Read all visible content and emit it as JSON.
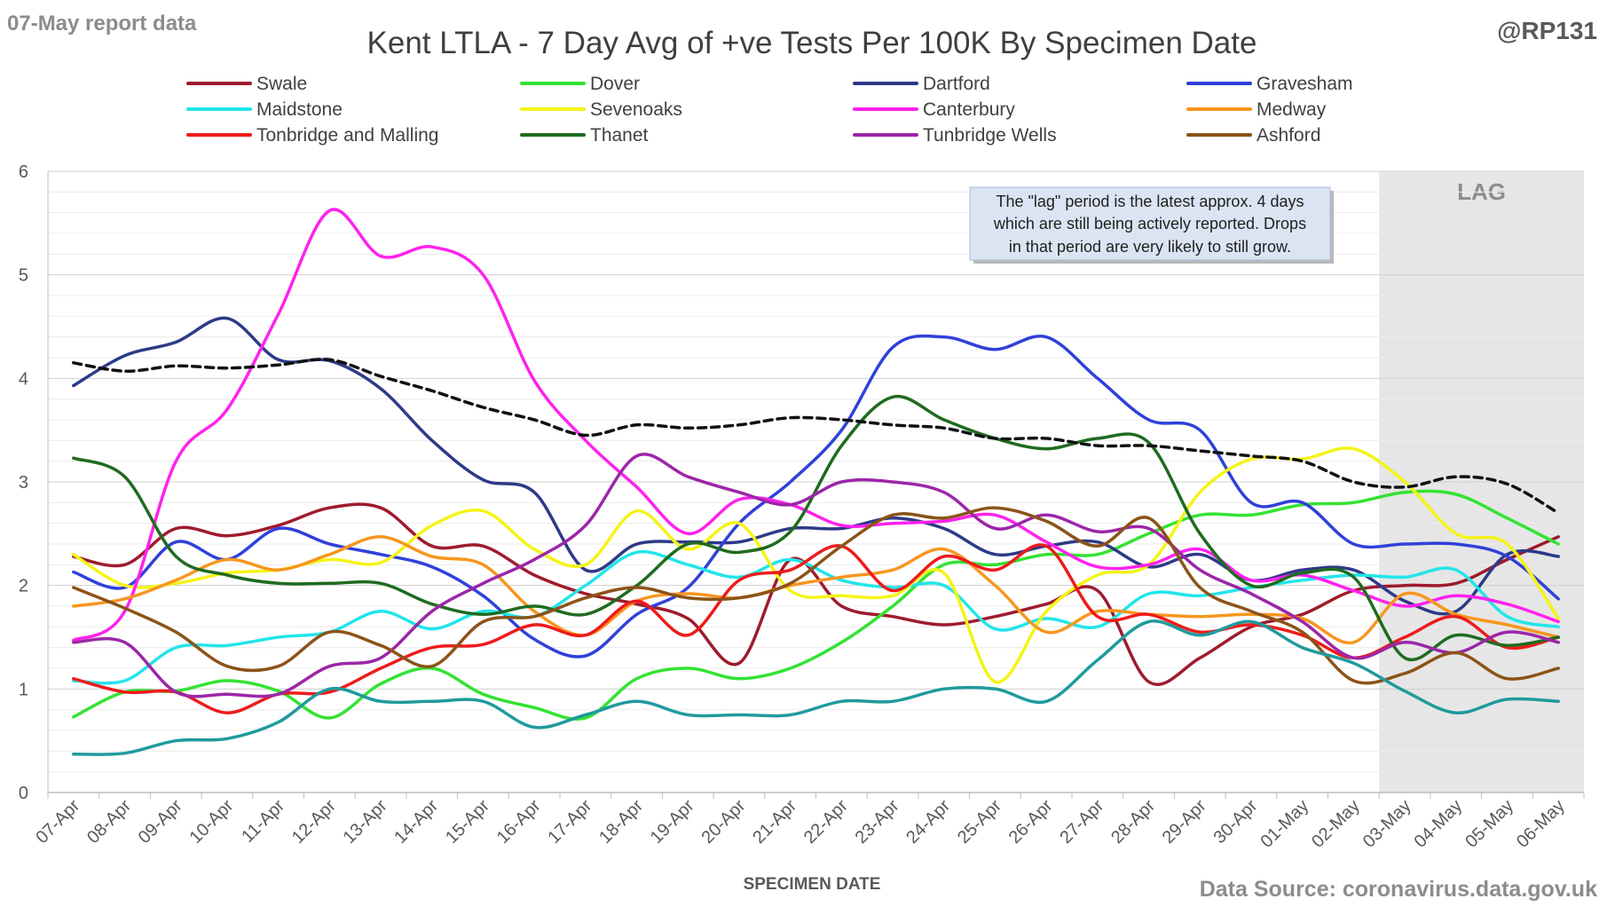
{
  "page": {
    "report_label": "07-May report data",
    "handle": "@RP131",
    "source": "Data Source: coronavirus.data.gov.uk"
  },
  "chart_data": {
    "type": "line",
    "title": "Kent  LTLA - 7 Day Avg of +ve Tests Per 100K By Specimen Date",
    "xlabel": "SPECIMEN DATE",
    "ylabel": "",
    "ylim": [
      0,
      6
    ],
    "yticks": [
      0,
      1,
      2,
      3,
      4,
      5,
      6
    ],
    "grid": true,
    "legend_position": "top",
    "lag": {
      "label": "LAG",
      "from": "03-May",
      "to": "06-May",
      "note": [
        "The \"lag\" period is the latest approx. 4 days",
        "which are still being actively reported.  Drops",
        "in that period are very likely to still grow."
      ]
    },
    "x": [
      "07-Apr",
      "08-Apr",
      "09-Apr",
      "10-Apr",
      "11-Apr",
      "12-Apr",
      "13-Apr",
      "14-Apr",
      "15-Apr",
      "16-Apr",
      "17-Apr",
      "18-Apr",
      "19-Apr",
      "20-Apr",
      "21-Apr",
      "22-Apr",
      "23-Apr",
      "24-Apr",
      "25-Apr",
      "26-Apr",
      "27-Apr",
      "28-Apr",
      "29-Apr",
      "30-Apr",
      "01-May",
      "02-May",
      "03-May",
      "04-May",
      "05-May",
      "06-May"
    ],
    "series": [
      {
        "name": "Swale",
        "color": "#9e1b2e",
        "values": [
          2.28,
          2.2,
          2.55,
          2.48,
          2.58,
          2.75,
          2.75,
          2.38,
          2.38,
          2.1,
          1.92,
          1.82,
          1.68,
          1.25,
          2.25,
          1.8,
          1.7,
          1.62,
          1.7,
          1.82,
          1.95,
          1.07,
          1.3,
          1.6,
          1.72,
          1.95,
          2.0,
          2.02,
          2.25,
          2.47
        ]
      },
      {
        "name": "Dover",
        "color": "#33e333",
        "values": [
          0.73,
          0.97,
          0.98,
          1.08,
          0.98,
          0.72,
          1.05,
          1.2,
          0.95,
          0.82,
          0.72,
          1.1,
          1.2,
          1.1,
          1.2,
          1.45,
          1.8,
          2.2,
          2.2,
          2.3,
          2.3,
          2.5,
          2.68,
          2.68,
          2.78,
          2.8,
          2.9,
          2.88,
          2.65,
          2.4
        ]
      },
      {
        "name": "Dartford",
        "color": "#2e3a87",
        "values": [
          3.93,
          4.22,
          4.35,
          4.58,
          4.18,
          4.17,
          3.9,
          3.4,
          3.02,
          2.9,
          2.15,
          2.4,
          2.42,
          2.42,
          2.55,
          2.55,
          2.65,
          2.55,
          2.3,
          2.38,
          2.42,
          2.18,
          2.3,
          2.05,
          2.15,
          2.15,
          1.85,
          1.75,
          2.3,
          2.28
        ]
      },
      {
        "name": "Gravesham",
        "color": "#2f41d9",
        "values": [
          2.13,
          1.98,
          2.42,
          2.25,
          2.55,
          2.4,
          2.3,
          2.18,
          1.9,
          1.48,
          1.32,
          1.72,
          1.98,
          2.6,
          3.0,
          3.5,
          4.3,
          4.4,
          4.28,
          4.4,
          4.0,
          3.6,
          3.5,
          2.8,
          2.8,
          2.4,
          2.4,
          2.4,
          2.28,
          1.87
        ]
      },
      {
        "name": "Maidstone",
        "color": "#22e5ea",
        "values": [
          1.08,
          1.08,
          1.4,
          1.42,
          1.5,
          1.55,
          1.75,
          1.58,
          1.75,
          1.7,
          2.0,
          2.32,
          2.2,
          2.08,
          2.25,
          2.05,
          1.98,
          2.0,
          1.58,
          1.68,
          1.6,
          1.92,
          1.9,
          1.98,
          2.05,
          2.1,
          2.08,
          2.15,
          1.7,
          1.6
        ]
      },
      {
        "name": "Sevenoaks",
        "color": "#f4f417",
        "values": [
          2.3,
          2.0,
          2.02,
          2.12,
          2.15,
          2.25,
          2.22,
          2.58,
          2.72,
          2.35,
          2.2,
          2.72,
          2.35,
          2.6,
          1.95,
          1.9,
          1.9,
          2.12,
          1.07,
          1.75,
          2.1,
          2.2,
          2.9,
          3.22,
          3.22,
          3.32,
          3.0,
          2.5,
          2.4,
          1.68
        ]
      },
      {
        "name": "Canterbury",
        "color": "#ff21ee",
        "values": [
          1.47,
          1.75,
          3.2,
          3.7,
          4.62,
          5.62,
          5.18,
          5.27,
          5.0,
          3.98,
          3.4,
          2.95,
          2.5,
          2.83,
          2.78,
          2.58,
          2.6,
          2.62,
          2.68,
          2.42,
          2.18,
          2.2,
          2.35,
          2.05,
          2.1,
          1.95,
          1.8,
          1.9,
          1.82,
          1.65
        ]
      },
      {
        "name": "Medway",
        "color": "#f7961e",
        "values": [
          1.8,
          1.87,
          2.05,
          2.25,
          2.15,
          2.3,
          2.47,
          2.28,
          2.2,
          1.75,
          1.52,
          1.85,
          1.92,
          1.88,
          2.0,
          2.08,
          2.15,
          2.35,
          2.0,
          1.55,
          1.75,
          1.72,
          1.7,
          1.72,
          1.68,
          1.45,
          1.92,
          1.72,
          1.62,
          1.5
        ]
      },
      {
        "name": "Tonbridge and Malling",
        "color": "#ee1b1b",
        "values": [
          1.1,
          0.97,
          0.97,
          0.77,
          0.95,
          0.97,
          1.2,
          1.4,
          1.43,
          1.62,
          1.52,
          1.85,
          1.52,
          2.05,
          2.15,
          2.38,
          1.95,
          2.28,
          2.15,
          2.38,
          1.7,
          1.72,
          1.55,
          1.62,
          1.52,
          1.3,
          1.5,
          1.7,
          1.4,
          1.5
        ]
      },
      {
        "name": "Thanet",
        "color": "#1f6b1f",
        "values": [
          3.23,
          3.05,
          2.28,
          2.1,
          2.02,
          2.02,
          2.02,
          1.82,
          1.72,
          1.8,
          1.72,
          2.0,
          2.4,
          2.32,
          2.52,
          3.35,
          3.82,
          3.6,
          3.42,
          3.32,
          3.42,
          3.38,
          2.5,
          2.0,
          2.12,
          2.08,
          1.3,
          1.52,
          1.42,
          1.5
        ]
      },
      {
        "name": "Tunbridge Wells",
        "color": "#9c26a8",
        "values": [
          1.45,
          1.45,
          0.97,
          0.95,
          0.95,
          1.22,
          1.3,
          1.75,
          2.02,
          2.25,
          2.58,
          3.25,
          3.05,
          2.9,
          2.78,
          3.0,
          3.0,
          2.9,
          2.55,
          2.68,
          2.52,
          2.55,
          2.15,
          1.92,
          1.65,
          1.3,
          1.45,
          1.35,
          1.55,
          1.45
        ]
      },
      {
        "name": "Ashford",
        "color": "#8c5318",
        "values": [
          1.98,
          1.78,
          1.55,
          1.22,
          1.22,
          1.55,
          1.42,
          1.22,
          1.65,
          1.7,
          1.88,
          1.98,
          1.88,
          1.88,
          2.02,
          2.38,
          2.68,
          2.65,
          2.75,
          2.62,
          2.38,
          2.65,
          1.98,
          1.75,
          1.55,
          1.08,
          1.15,
          1.35,
          1.1,
          1.2
        ]
      },
      {
        "name": "",
        "color": "#1f9a9e",
        "values": [
          0.37,
          0.38,
          0.5,
          0.52,
          0.68,
          1.0,
          0.88,
          0.88,
          0.88,
          0.63,
          0.75,
          0.88,
          0.75,
          0.75,
          0.75,
          0.88,
          0.88,
          1.0,
          1.0,
          0.88,
          1.28,
          1.65,
          1.52,
          1.65,
          1.4,
          1.25,
          0.98,
          0.77,
          0.9,
          0.88
        ]
      },
      {
        "name": "",
        "color": "#111111",
        "dashed": true,
        "values": [
          4.15,
          4.07,
          4.12,
          4.1,
          4.13,
          4.18,
          4.02,
          3.88,
          3.72,
          3.6,
          3.45,
          3.55,
          3.52,
          3.55,
          3.62,
          3.6,
          3.55,
          3.52,
          3.42,
          3.42,
          3.35,
          3.35,
          3.3,
          3.25,
          3.2,
          3.0,
          2.95,
          3.05,
          2.98,
          2.7
        ]
      }
    ]
  }
}
